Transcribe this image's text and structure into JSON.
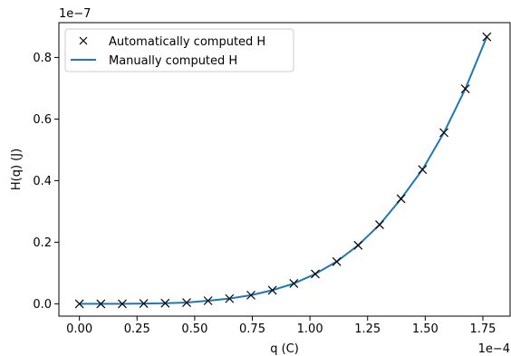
{
  "chart_data": {
    "type": "line",
    "title": "",
    "xlabel": "q (C)",
    "ylabel": "H(q) (J)",
    "x_offset_label": "1e−4",
    "y_offset_label": "1e−7",
    "xlim": [
      -8.9e-06,
      0.0001868
    ],
    "ylim": [
      -4e-09,
      9.13e-08
    ],
    "x_ticks": [
      0.0,
      2.5e-05,
      5e-05,
      7.5e-05,
      0.0001,
      0.000125,
      0.00015,
      0.000175
    ],
    "x_tick_labels": [
      "0.00",
      "0.25",
      "0.50",
      "0.75",
      "1.00",
      "1.25",
      "1.50",
      "1.75"
    ],
    "y_ticks": [
      0.0,
      2e-08,
      4e-08,
      6e-08,
      8e-08
    ],
    "y_tick_labels": [
      "0.0",
      "0.2",
      "0.4",
      "0.6",
      "0.8"
    ],
    "grid": false,
    "legend_position": "top-left",
    "colors": {
      "line": "#1f77b4",
      "marker": "#000000"
    },
    "series": [
      {
        "name": "Automatically computed H",
        "style": "markers-x",
        "x": [
          0.0,
          9.3e-06,
          1.86e-05,
          2.79e-05,
          3.72e-05,
          4.65e-05,
          5.58e-05,
          6.51e-05,
          7.44e-05,
          8.37e-05,
          9.3e-05,
          0.0001023,
          0.0001116,
          0.0001209,
          0.0001302,
          0.0001395,
          0.0001488,
          0.0001581,
          0.0001674,
          0.0001767
        ],
        "y": [
          0.0,
          0.0,
          0.0,
          1e-10,
          2e-10,
          4e-10,
          1e-09,
          1.7e-09,
          2.8e-09,
          4.4e-09,
          6.6e-09,
          9.7e-09,
          1.37e-08,
          1.9e-08,
          2.57e-08,
          3.41e-08,
          4.36e-08,
          5.56e-08,
          6.98e-08,
          8.67e-08
        ]
      },
      {
        "name": "Manually computed H",
        "style": "line",
        "x": [
          0.0,
          9.3e-06,
          1.86e-05,
          2.79e-05,
          3.72e-05,
          4.65e-05,
          5.58e-05,
          6.51e-05,
          7.44e-05,
          8.37e-05,
          9.3e-05,
          0.0001023,
          0.0001116,
          0.0001209,
          0.0001302,
          0.0001395,
          0.0001488,
          0.0001581,
          0.0001674,
          0.0001767
        ],
        "y": [
          0.0,
          0.0,
          0.0,
          1e-10,
          2e-10,
          4e-10,
          1e-09,
          1.7e-09,
          2.8e-09,
          4.4e-09,
          6.6e-09,
          9.7e-09,
          1.37e-08,
          1.9e-08,
          2.57e-08,
          3.41e-08,
          4.36e-08,
          5.56e-08,
          6.98e-08,
          8.67e-08
        ]
      }
    ]
  }
}
